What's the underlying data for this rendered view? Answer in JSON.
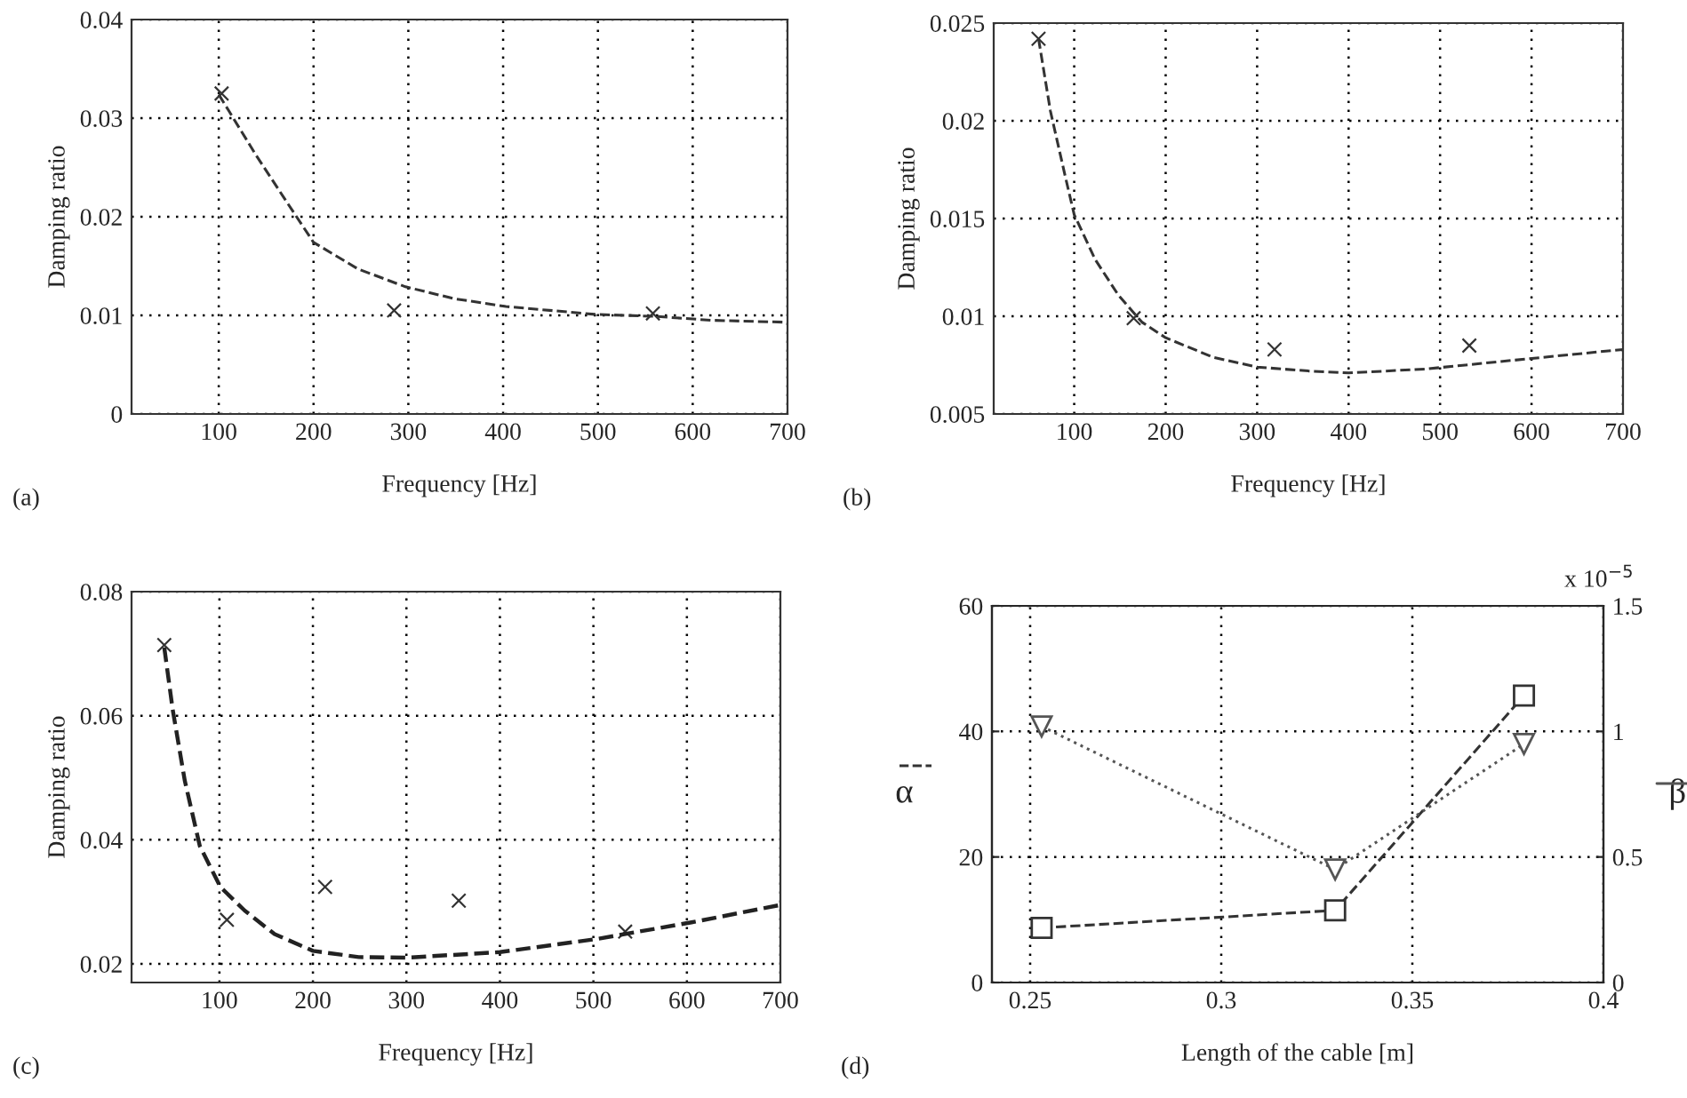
{
  "chart_data": [
    {
      "type": "scatter",
      "xlabel": "Frequency [Hz]",
      "ylabel": "Damping ratio",
      "annotations": [
        "(a)"
      ],
      "xlim": [
        8,
        700
      ],
      "ylim": [
        0,
        0.04
      ],
      "xticks": [
        100,
        200,
        300,
        400,
        500,
        600,
        700
      ],
      "yticks": [
        0,
        0.01,
        0.02,
        0.03,
        0.04
      ],
      "grid": true,
      "series": [
        {
          "type": "scatter",
          "color": "#333333",
          "marker": "cross",
          "x": [
            103,
            285,
            558
          ],
          "values": [
            0.0325,
            0.0105,
            0.0102
          ]
        },
        {
          "type": "line",
          "color": "#333333",
          "marker": "none",
          "line_style": "dashed",
          "x": [
            100,
            139,
            171,
            200,
            247,
            297,
            348,
            403,
            497,
            560,
            620,
            700
          ],
          "values": [
            0.0324,
            0.0263,
            0.0216,
            0.0174,
            0.0147,
            0.0129,
            0.0117,
            0.0109,
            0.0101,
            0.0099,
            0.0095,
            0.0093
          ]
        }
      ]
    },
    {
      "type": "scatter",
      "xlabel": "Frequency [Hz]",
      "ylabel": "Damping ratio",
      "annotations": [
        "(b)"
      ],
      "xlim": [
        12,
        700
      ],
      "ylim": [
        0.005,
        0.025
      ],
      "xticks": [
        100,
        200,
        300,
        400,
        500,
        600,
        700
      ],
      "yticks": [
        0.005,
        0.01,
        0.015,
        0.02,
        0.025
      ],
      "grid": true,
      "series": [
        {
          "type": "scatter",
          "color": "#333333",
          "marker": "cross",
          "x": [
            61,
            165,
            319,
            532
          ],
          "values": [
            0.0242,
            0.0099,
            0.0083,
            0.0085
          ]
        },
        {
          "type": "line",
          "color": "#333333",
          "marker": "none",
          "line_style": "dashed",
          "x": [
            61,
            74,
            90,
            100,
            123,
            148,
            174,
            200,
            252,
            300,
            356,
            400,
            484,
            548,
            613,
            700
          ],
          "values": [
            0.0242,
            0.0205,
            0.0172,
            0.0152,
            0.0129,
            0.0111,
            0.0097,
            0.0089,
            0.0079,
            0.0074,
            0.0072,
            0.0071,
            0.0073,
            0.0076,
            0.0079,
            0.0083
          ]
        }
      ]
    },
    {
      "type": "scatter",
      "xlabel": "Frequency [Hz]",
      "ylabel": "Damping ratio",
      "annotations": [
        "(c)"
      ],
      "xlim": [
        6,
        700
      ],
      "ylim": [
        0.017,
        0.08
      ],
      "xticks": [
        100,
        200,
        300,
        400,
        500,
        600,
        700
      ],
      "yticks": [
        0.02,
        0.04,
        0.06,
        0.08
      ],
      "grid": true,
      "series": [
        {
          "type": "scatter",
          "color": "#333333",
          "marker": "cross",
          "x": [
            41,
            108,
            213,
            356,
            534
          ],
          "values": [
            0.0714,
            0.0271,
            0.0324,
            0.0302,
            0.0252
          ]
        },
        {
          "type": "line",
          "color": "#222222",
          "marker": "none",
          "line_style": "dashed",
          "x": [
            41,
            50,
            63,
            79,
            101,
            127,
            159,
            200,
            249,
            300,
            400,
            503,
            605,
            700
          ],
          "values": [
            0.071,
            0.061,
            0.0495,
            0.039,
            0.0324,
            0.0286,
            0.0248,
            0.0221,
            0.0211,
            0.021,
            0.0219,
            0.024,
            0.0267,
            0.0295
          ]
        }
      ]
    },
    {
      "type": "line",
      "xlabel": "Length of the cable [m]",
      "ylabel": "α",
      "y2label": "β",
      "annotations": [
        "(d)",
        "x 10$^{−5}$"
      ],
      "xlim": [
        0.24,
        0.4
      ],
      "ylim": [
        0,
        60
      ],
      "y2lim": [
        0,
        1.5
      ],
      "xticks": [
        0.25,
        0.3,
        0.35,
        0.4
      ],
      "yticks": [
        0,
        20,
        40,
        60
      ],
      "y2ticks": [
        0,
        0.5,
        1,
        1.5
      ],
      "grid": true,
      "series": [
        {
          "color": "#333333",
          "marker": "square",
          "line_style": "dashed",
          "x": [
            0.253,
            0.3298,
            0.3792
          ],
          "values": [
            8.7,
            11.5,
            45.7
          ]
        },
        {
          "axis": "y2",
          "color": "#555555",
          "marker": "triangle",
          "line_style": "dotted",
          "x": [
            0.253,
            0.3298,
            0.3792
          ],
          "values": [
            1.02,
            0.45,
            0.95
          ]
        }
      ]
    }
  ]
}
